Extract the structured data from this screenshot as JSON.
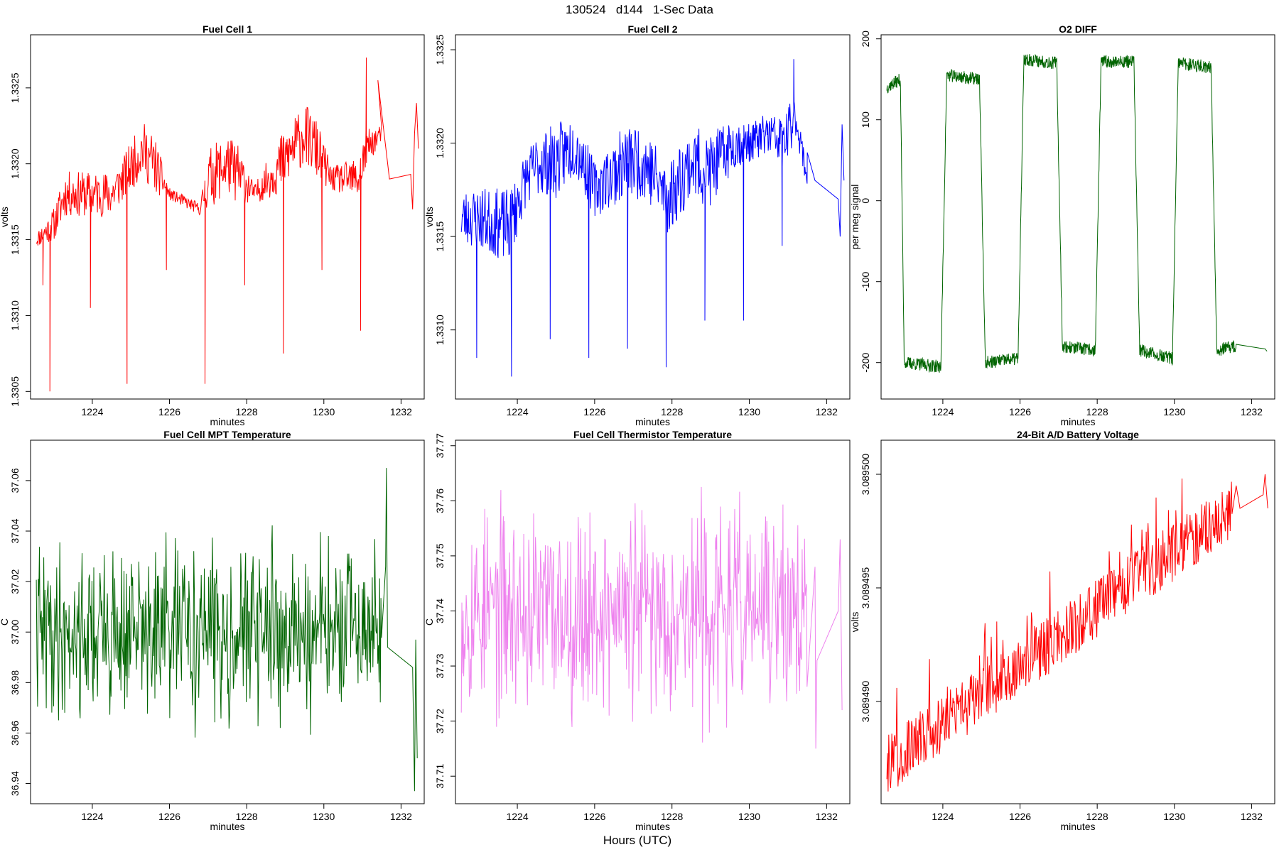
{
  "figure": {
    "title": "130524   d144   1-Sec Data",
    "xlabel": "Hours (UTC)"
  },
  "chart_data": [
    {
      "type": "line",
      "title": "Fuel Cell 1",
      "xlabel": "minutes",
      "ylabel": "volts",
      "color": "#ff0000",
      "xlim": [
        1222.4,
        1232.6
      ],
      "ylim": [
        1.33045,
        1.33285
      ],
      "xticks": [
        1224,
        1226,
        1228,
        1230,
        1232
      ],
      "yticks": [
        1.3305,
        1.331,
        1.3315,
        1.332,
        1.3325
      ],
      "ytick_labels": [
        "1.3305",
        "1.3310",
        "1.3315",
        "1.3320",
        "1.3325"
      ],
      "profile": [
        [
          1222.55,
          1.3315
        ],
        [
          1223.0,
          1.3316
        ],
        [
          1223.3,
          1.3318
        ],
        [
          1224.0,
          1.3318
        ],
        [
          1224.5,
          1.3318
        ],
        [
          1224.8,
          1.3319
        ],
        [
          1225.3,
          1.3321
        ],
        [
          1225.6,
          1.332
        ],
        [
          1226.0,
          1.3318
        ],
        [
          1226.8,
          1.3317
        ],
        [
          1227.0,
          1.3319
        ],
        [
          1227.5,
          1.332
        ],
        [
          1227.9,
          1.3319
        ],
        [
          1228.2,
          1.3318
        ],
        [
          1228.9,
          1.332
        ],
        [
          1229.5,
          1.3322
        ],
        [
          1229.8,
          1.3321
        ],
        [
          1230.2,
          1.3319
        ],
        [
          1230.6,
          1.3319
        ],
        [
          1230.9,
          1.3319
        ],
        [
          1231.1,
          1.3321
        ],
        [
          1231.5,
          1.3322
        ],
        [
          1231.6,
          1.3319
        ],
        [
          1232.2,
          1.3319
        ]
      ],
      "noise": [
        [
          1222.55,
          5e-05
        ],
        [
          1223.3,
          0.00015
        ],
        [
          1224.2,
          0.00015
        ],
        [
          1224.8,
          0.00015
        ],
        [
          1225.6,
          0.0002
        ],
        [
          1226.0,
          4e-05
        ],
        [
          1226.8,
          4e-05
        ],
        [
          1227.0,
          0.0002
        ],
        [
          1227.8,
          0.0002
        ],
        [
          1228.2,
          6e-05
        ],
        [
          1228.9,
          0.0002
        ],
        [
          1229.8,
          0.0002
        ],
        [
          1230.2,
          8e-05
        ],
        [
          1231.0,
          0.00015
        ],
        [
          1231.5,
          5e-05
        ],
        [
          1232.2,
          5e-05
        ]
      ],
      "spikes": [
        [
          1222.72,
          1.3312
        ],
        [
          1222.9,
          1.3305
        ],
        [
          1223.95,
          1.33105
        ],
        [
          1224.9,
          1.33055
        ],
        [
          1225.92,
          1.3313
        ],
        [
          1226.92,
          1.33055
        ],
        [
          1227.95,
          1.3312
        ],
        [
          1228.95,
          1.33075
        ],
        [
          1229.95,
          1.3313
        ],
        [
          1230.95,
          1.3309
        ],
        [
          1231.1,
          1.3327
        ]
      ],
      "tail": [
        [
          1231.4,
          1.33255
        ],
        [
          1231.7,
          1.3319
        ],
        [
          1232.25,
          1.33193
        ],
        [
          1232.3,
          1.3317
        ],
        [
          1232.35,
          1.3322
        ],
        [
          1232.4,
          1.3324
        ],
        [
          1232.45,
          1.3321
        ]
      ],
      "seed": 11
    },
    {
      "type": "line",
      "title": "Fuel Cell 2",
      "xlabel": "minutes",
      "ylabel": "volts",
      "color": "#0000ff",
      "xlim": [
        1222.4,
        1232.6
      ],
      "ylim": [
        1.33063,
        1.33258
      ],
      "xticks": [
        1224,
        1226,
        1228,
        1230,
        1232
      ],
      "yticks": [
        1.331,
        1.3315,
        1.332,
        1.3325
      ],
      "ytick_labels": [
        "1.3310",
        "1.3315",
        "1.3320",
        "1.3325"
      ],
      "profile": [
        [
          1222.55,
          1.3316
        ],
        [
          1223.0,
          1.3316
        ],
        [
          1223.8,
          1.33155
        ],
        [
          1224.2,
          1.3318
        ],
        [
          1224.6,
          1.3319
        ],
        [
          1225.0,
          1.3319
        ],
        [
          1225.5,
          1.332
        ],
        [
          1226.0,
          1.33175
        ],
        [
          1226.8,
          1.3319
        ],
        [
          1227.3,
          1.3319
        ],
        [
          1227.9,
          1.3317
        ],
        [
          1228.5,
          1.3319
        ],
        [
          1229.0,
          1.33185
        ],
        [
          1229.6,
          1.332
        ],
        [
          1230.0,
          1.332
        ],
        [
          1230.5,
          1.33205
        ],
        [
          1230.9,
          1.332
        ],
        [
          1231.2,
          1.33215
        ],
        [
          1231.5,
          1.3318
        ],
        [
          1232.2,
          1.3318
        ]
      ],
      "noise": [
        [
          1222.55,
          0.00015
        ],
        [
          1223.8,
          0.0002
        ],
        [
          1224.2,
          0.00015
        ],
        [
          1225.0,
          0.0002
        ],
        [
          1226.0,
          0.00015
        ],
        [
          1226.8,
          0.0002
        ],
        [
          1228.0,
          0.0002
        ],
        [
          1229.0,
          0.0002
        ],
        [
          1230.0,
          0.0001
        ],
        [
          1231.0,
          0.00015
        ],
        [
          1231.5,
          5e-05
        ],
        [
          1232.2,
          5e-05
        ]
      ],
      "spikes": [
        [
          1222.95,
          1.33085
        ],
        [
          1223.85,
          1.33075
        ],
        [
          1224.85,
          1.33095
        ],
        [
          1225.85,
          1.33085
        ],
        [
          1226.85,
          1.3309
        ],
        [
          1227.85,
          1.3308
        ],
        [
          1228.85,
          1.33105
        ],
        [
          1229.85,
          1.33105
        ],
        [
          1230.85,
          1.33145
        ],
        [
          1231.15,
          1.33245
        ]
      ],
      "tail": [
        [
          1231.5,
          1.33195
        ],
        [
          1231.7,
          1.3318
        ],
        [
          1232.3,
          1.3317
        ],
        [
          1232.35,
          1.3315
        ],
        [
          1232.4,
          1.3321
        ],
        [
          1232.45,
          1.3318
        ]
      ],
      "seed": 23
    },
    {
      "type": "line",
      "title": "O2 DIFF",
      "xlabel": "minutes",
      "ylabel": "per meg signal",
      "color": "#006400",
      "xlim": [
        1222.4,
        1232.6
      ],
      "ylim": [
        -245,
        205
      ],
      "xticks": [
        1224,
        1226,
        1228,
        1230,
        1232
      ],
      "yticks": [
        -200,
        -100,
        0,
        100,
        200
      ],
      "ytick_labels": [
        "-200",
        "-100",
        "0",
        "100",
        "200"
      ],
      "levels": [
        [
          1222.55,
          140
        ],
        [
          1222.9,
          150
        ],
        [
          1223.0,
          -200
        ],
        [
          1223.95,
          -205
        ],
        [
          1224.1,
          155
        ],
        [
          1224.95,
          150
        ],
        [
          1225.1,
          -200
        ],
        [
          1225.95,
          -195
        ],
        [
          1226.1,
          175
        ],
        [
          1226.95,
          170
        ],
        [
          1227.1,
          -180
        ],
        [
          1227.95,
          -185
        ],
        [
          1228.1,
          172
        ],
        [
          1228.95,
          172
        ],
        [
          1229.1,
          -185
        ],
        [
          1229.95,
          -195
        ],
        [
          1230.1,
          170
        ],
        [
          1230.95,
          165
        ],
        [
          1231.1,
          -185
        ],
        [
          1231.5,
          -180
        ],
        [
          1232.4,
          -185
        ]
      ],
      "seed": 37
    },
    {
      "type": "line",
      "title": "Fuel Cell MPT Temperature",
      "xlabel": "minutes",
      "ylabel": "C",
      "color": "#006400",
      "xlim": [
        1222.4,
        1232.6
      ],
      "ylim": [
        36.932,
        37.076
      ],
      "xticks": [
        1224,
        1226,
        1228,
        1230,
        1232
      ],
      "yticks": [
        36.94,
        36.96,
        36.98,
        37.0,
        37.02,
        37.04,
        37.06
      ],
      "ytick_labels": [
        "36.94",
        "36.96",
        "36.98",
        "37.00",
        "37.02",
        "37.04",
        "37.06"
      ],
      "base": 37.0,
      "amp": 0.022,
      "seed": 41
    },
    {
      "type": "line",
      "title": "Fuel Cell Thermistor Temperature",
      "xlabel": "minutes",
      "ylabel": "C",
      "color": "#ee82ee",
      "xlim": [
        1222.4,
        1232.6
      ],
      "ylim": [
        37.705,
        37.771
      ],
      "xticks": [
        1224,
        1226,
        1228,
        1230,
        1232
      ],
      "yticks": [
        37.71,
        37.72,
        37.73,
        37.74,
        37.75,
        37.76,
        37.77
      ],
      "ytick_labels": [
        "37.71",
        "37.72",
        "37.73",
        "37.74",
        "37.75",
        "37.76",
        "37.77"
      ],
      "base": 37.74,
      "amp": 0.012,
      "seed": 53
    },
    {
      "type": "line",
      "title": "24-Bit A/D Battery Voltage",
      "xlabel": "minutes",
      "ylabel": "volts",
      "color": "#ff0000",
      "xlim": [
        1222.4,
        1232.6
      ],
      "ylim": [
        3.0894855,
        3.0895015
      ],
      "xticks": [
        1224,
        1226,
        1228,
        1230,
        1232
      ],
      "yticks": [
        3.08949,
        3.089495,
        3.0895
      ],
      "ytick_labels": [
        "3.089490",
        "3.089495",
        "3.089500"
      ],
      "start": 3.0894872,
      "end": 3.0894985,
      "seed": 67
    }
  ]
}
